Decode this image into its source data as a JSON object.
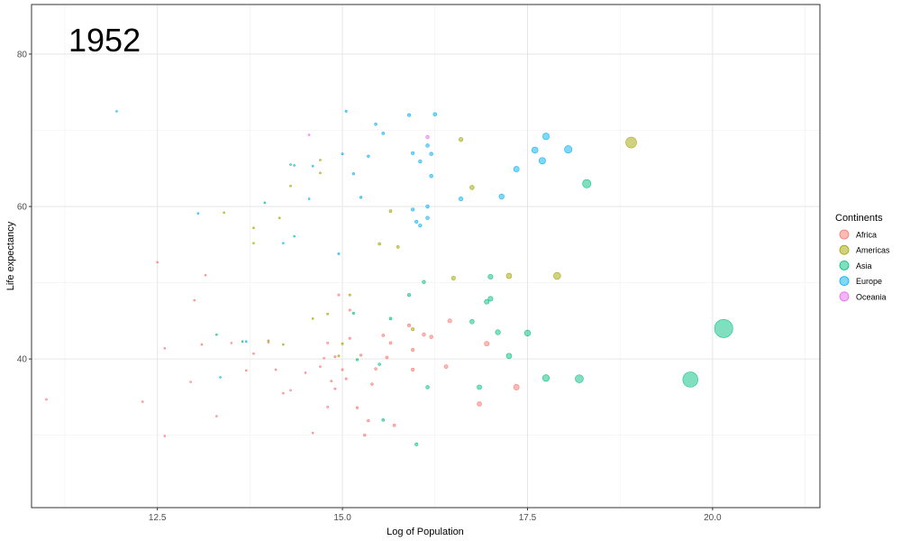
{
  "chart_data": {
    "type": "scatter",
    "annotation": "1952",
    "xlabel": "Log of Population",
    "ylabel": "Life expectancy",
    "xlim": [
      10.8,
      21.45
    ],
    "ylim": [
      20.5,
      86.5
    ],
    "x_ticks": [
      12.5,
      15.0,
      17.5,
      20.0
    ],
    "x_tick_labels": [
      "12.5",
      "15.0",
      "17.5",
      "20.0"
    ],
    "y_ticks": [
      40,
      60,
      80
    ],
    "y_tick_labels": [
      "40",
      "60",
      "80"
    ],
    "grid": true,
    "legend": {
      "title": "Continents",
      "placement": "right",
      "entries": [
        "Africa",
        "Americas",
        "Asia",
        "Europe",
        "Oceania"
      ]
    },
    "colors": {
      "Africa": "#F8766D",
      "Americas": "#A3A500",
      "Asia": "#00BF7D",
      "Europe": "#00B0F6",
      "Oceania": "#E76BF3"
    },
    "series": [
      {
        "name": "Africa",
        "points": [
          [
            11.0,
            34.7
          ],
          [
            12.3,
            34.4
          ],
          [
            12.5,
            52.7
          ],
          [
            12.6,
            41.4
          ],
          [
            12.6,
            29.9
          ],
          [
            12.95,
            37.0
          ],
          [
            13.0,
            47.7
          ],
          [
            13.1,
            41.9
          ],
          [
            13.15,
            51.0
          ],
          [
            13.3,
            32.5
          ],
          [
            13.5,
            42.1
          ],
          [
            13.7,
            38.5
          ],
          [
            13.8,
            40.7
          ],
          [
            14.0,
            42.2
          ],
          [
            14.1,
            38.6
          ],
          [
            14.2,
            35.5
          ],
          [
            14.3,
            35.9
          ],
          [
            14.5,
            38.2
          ],
          [
            14.6,
            30.3
          ],
          [
            14.7,
            39.0
          ],
          [
            14.75,
            40.1
          ],
          [
            14.8,
            42.1
          ],
          [
            14.8,
            33.7
          ],
          [
            14.85,
            37.1
          ],
          [
            14.9,
            40.3
          ],
          [
            14.9,
            36.1
          ],
          [
            14.95,
            48.4
          ],
          [
            15.0,
            38.6
          ],
          [
            15.05,
            37.4
          ],
          [
            15.1,
            46.4
          ],
          [
            15.1,
            42.7
          ],
          [
            15.2,
            33.6
          ],
          [
            15.25,
            40.5
          ],
          [
            15.3,
            30.0
          ],
          [
            15.35,
            31.9
          ],
          [
            15.4,
            36.7
          ],
          [
            15.45,
            38.7
          ],
          [
            15.55,
            43.1
          ],
          [
            15.6,
            40.2
          ],
          [
            15.65,
            42.1
          ],
          [
            15.7,
            31.3
          ],
          [
            15.9,
            44.4
          ],
          [
            15.95,
            41.2
          ],
          [
            15.95,
            38.6
          ],
          [
            16.1,
            43.2
          ],
          [
            16.2,
            42.9
          ],
          [
            16.4,
            39.0
          ],
          [
            16.45,
            45.0
          ],
          [
            16.85,
            34.1
          ],
          [
            16.95,
            42.0
          ],
          [
            17.35,
            36.3
          ]
        ]
      },
      {
        "name": "Americas",
        "points": [
          [
            13.4,
            59.2
          ],
          [
            13.8,
            57.2
          ],
          [
            13.8,
            55.2
          ],
          [
            14.0,
            42.4
          ],
          [
            14.15,
            58.5
          ],
          [
            14.2,
            41.9
          ],
          [
            14.3,
            62.7
          ],
          [
            14.6,
            45.3
          ],
          [
            14.7,
            64.4
          ],
          [
            14.7,
            66.1
          ],
          [
            14.8,
            45.9
          ],
          [
            14.95,
            40.4
          ],
          [
            15.0,
            42.0
          ],
          [
            15.1,
            48.4
          ],
          [
            15.5,
            55.1
          ],
          [
            15.65,
            59.4
          ],
          [
            15.75,
            54.7
          ],
          [
            15.95,
            43.9
          ],
          [
            16.5,
            50.6
          ],
          [
            16.6,
            68.8
          ],
          [
            16.75,
            62.5
          ],
          [
            17.25,
            50.9
          ],
          [
            17.9,
            50.9
          ],
          [
            18.9,
            68.4
          ]
        ]
      },
      {
        "name": "Asia",
        "points": [
          [
            13.3,
            43.2
          ],
          [
            13.65,
            42.3
          ],
          [
            13.95,
            60.5
          ],
          [
            14.3,
            65.5
          ],
          [
            15.15,
            46.0
          ],
          [
            15.2,
            39.9
          ],
          [
            15.5,
            39.3
          ],
          [
            15.55,
            32.0
          ],
          [
            15.65,
            45.3
          ],
          [
            15.9,
            48.4
          ],
          [
            16.0,
            28.8
          ],
          [
            16.1,
            50.1
          ],
          [
            16.15,
            36.3
          ],
          [
            16.75,
            44.9
          ],
          [
            16.85,
            36.3
          ],
          [
            16.95,
            47.5
          ],
          [
            17.0,
            50.8
          ],
          [
            17.0,
            47.9
          ],
          [
            17.1,
            43.5
          ],
          [
            17.25,
            40.4
          ],
          [
            17.5,
            43.4
          ],
          [
            17.75,
            37.5
          ],
          [
            18.2,
            37.4
          ],
          [
            18.3,
            63.0
          ],
          [
            19.7,
            37.3
          ],
          [
            20.15,
            44.0
          ]
        ]
      },
      {
        "name": "Europe",
        "points": [
          [
            11.95,
            72.5
          ],
          [
            13.05,
            59.1
          ],
          [
            13.35,
            37.6
          ],
          [
            13.7,
            42.3
          ],
          [
            14.2,
            55.2
          ],
          [
            14.35,
            56.1
          ],
          [
            14.35,
            65.4
          ],
          [
            14.55,
            61.0
          ],
          [
            14.6,
            65.3
          ],
          [
            14.95,
            53.8
          ],
          [
            15.0,
            66.9
          ],
          [
            15.05,
            72.5
          ],
          [
            15.15,
            64.3
          ],
          [
            15.25,
            61.2
          ],
          [
            15.35,
            66.6
          ],
          [
            15.45,
            70.8
          ],
          [
            15.55,
            69.6
          ],
          [
            15.9,
            72.0
          ],
          [
            15.95,
            67.0
          ],
          [
            15.95,
            59.6
          ],
          [
            16.0,
            58.0
          ],
          [
            16.05,
            65.9
          ],
          [
            16.05,
            57.5
          ],
          [
            16.15,
            68.0
          ],
          [
            16.15,
            60.0
          ],
          [
            16.15,
            58.5
          ],
          [
            16.2,
            66.9
          ],
          [
            16.2,
            64.0
          ],
          [
            16.25,
            72.1
          ],
          [
            16.6,
            61.0
          ],
          [
            17.15,
            61.3
          ],
          [
            17.35,
            64.9
          ],
          [
            17.6,
            67.4
          ],
          [
            17.7,
            66.0
          ],
          [
            17.75,
            69.2
          ],
          [
            18.05,
            67.5
          ]
        ]
      },
      {
        "name": "Oceania",
        "points": [
          [
            14.55,
            69.4
          ],
          [
            16.15,
            69.1
          ]
        ]
      }
    ]
  }
}
